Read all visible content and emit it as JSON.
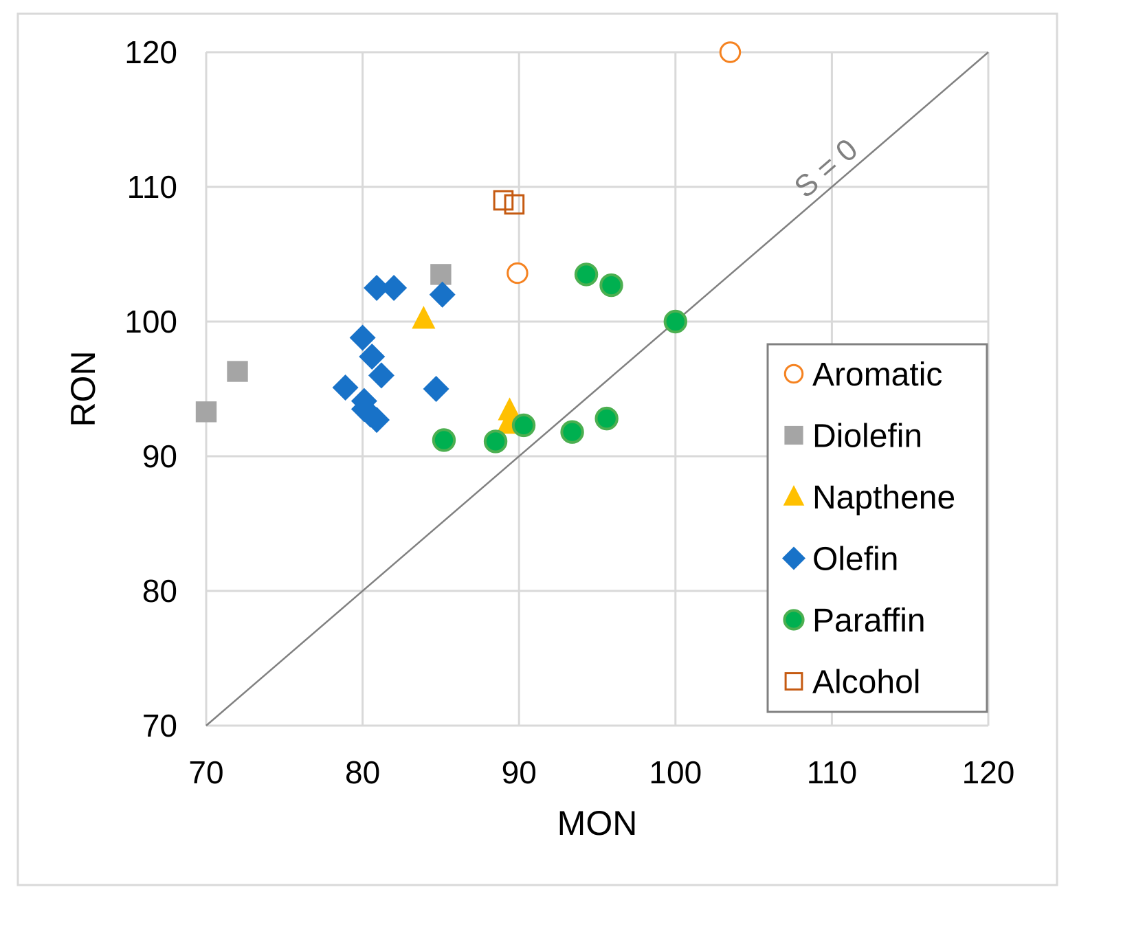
{
  "chart_data": {
    "type": "scatter",
    "title": "",
    "xlabel": "MON",
    "ylabel": "RON",
    "xlim": [
      70,
      120
    ],
    "ylim": [
      70,
      120
    ],
    "xticks": [
      70,
      80,
      90,
      100,
      110,
      120
    ],
    "yticks": [
      70,
      80,
      90,
      100,
      110,
      120
    ],
    "grid": true,
    "legend_position": "right",
    "reference_line": {
      "label": "S = 0",
      "from": [
        70,
        70
      ],
      "to": [
        120,
        120
      ],
      "color": "#808080"
    },
    "series": [
      {
        "name": "Aromatic",
        "marker": "circle-open",
        "color": "#F58220",
        "points": [
          [
            103.5,
            120.0
          ],
          [
            89.9,
            103.6
          ]
        ]
      },
      {
        "name": "Diolefin",
        "marker": "square",
        "color": "#A5A5A5",
        "points": [
          [
            70.0,
            93.3
          ],
          [
            72.0,
            96.3
          ],
          [
            85.0,
            103.5
          ]
        ]
      },
      {
        "name": "Napthene",
        "marker": "triangle",
        "color": "#FFC000",
        "points": [
          [
            83.9,
            100.2
          ],
          [
            89.4,
            93.4
          ],
          [
            89.3,
            92.4
          ]
        ]
      },
      {
        "name": "Olefin",
        "marker": "diamond",
        "color": "#1872C8",
        "points": [
          [
            80.9,
            102.5
          ],
          [
            82.0,
            102.5
          ],
          [
            85.1,
            102.0
          ],
          [
            80.0,
            98.8
          ],
          [
            80.6,
            97.4
          ],
          [
            81.2,
            96.0
          ],
          [
            78.9,
            95.1
          ],
          [
            84.7,
            95.0
          ],
          [
            80.1,
            94.1
          ],
          [
            80.1,
            93.5
          ],
          [
            80.5,
            93.1
          ],
          [
            80.9,
            92.7
          ]
        ]
      },
      {
        "name": "Paraffin",
        "marker": "circle",
        "color": "#00B050",
        "points": [
          [
            94.3,
            103.5
          ],
          [
            95.9,
            102.7
          ],
          [
            100.0,
            100.0
          ],
          [
            85.2,
            91.2
          ],
          [
            88.5,
            91.1
          ],
          [
            90.3,
            92.3
          ],
          [
            93.4,
            91.8
          ],
          [
            95.6,
            92.8
          ]
        ]
      },
      {
        "name": "Alcohol",
        "marker": "square-open",
        "color": "#C55A11",
        "points": [
          [
            89.0,
            109.0
          ],
          [
            89.7,
            108.7
          ]
        ]
      }
    ]
  }
}
